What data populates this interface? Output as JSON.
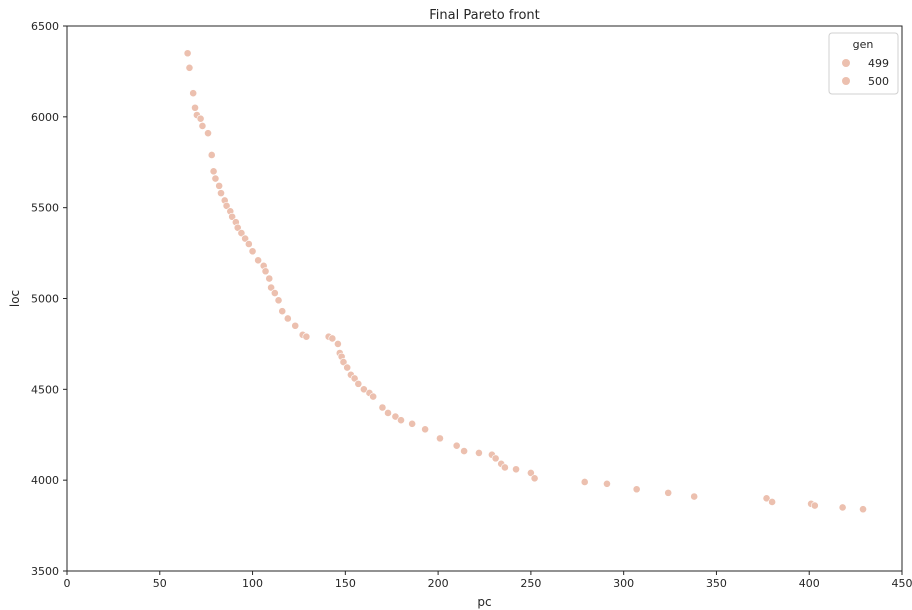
{
  "chart_data": {
    "type": "scatter",
    "title": "Final Pareto front",
    "xlabel": "pc",
    "ylabel": "loc",
    "xlim": [
      0,
      450
    ],
    "ylim": [
      3500,
      6500
    ],
    "xticks": [
      0,
      50,
      100,
      150,
      200,
      250,
      300,
      350,
      400,
      450
    ],
    "yticks": [
      3500,
      4000,
      4500,
      5000,
      5500,
      6000,
      6500
    ],
    "grid": false,
    "legend": {
      "title": "gen",
      "placement": "top-right"
    },
    "series": [
      {
        "name": "499",
        "color": "#ecc0af",
        "points": []
      },
      {
        "name": "500",
        "color": "#ecc0af",
        "points": [
          [
            65,
            6350
          ],
          [
            66,
            6270
          ],
          [
            68,
            6130
          ],
          [
            69,
            6050
          ],
          [
            70,
            6010
          ],
          [
            72,
            5990
          ],
          [
            73,
            5950
          ],
          [
            76,
            5910
          ],
          [
            78,
            5790
          ],
          [
            79,
            5700
          ],
          [
            80,
            5660
          ],
          [
            82,
            5620
          ],
          [
            83,
            5580
          ],
          [
            85,
            5540
          ],
          [
            86,
            5510
          ],
          [
            88,
            5480
          ],
          [
            89,
            5450
          ],
          [
            91,
            5420
          ],
          [
            92,
            5390
          ],
          [
            94,
            5360
          ],
          [
            96,
            5330
          ],
          [
            98,
            5300
          ],
          [
            100,
            5260
          ],
          [
            103,
            5210
          ],
          [
            106,
            5180
          ],
          [
            107,
            5150
          ],
          [
            109,
            5110
          ],
          [
            110,
            5060
          ],
          [
            112,
            5030
          ],
          [
            114,
            4990
          ],
          [
            116,
            4930
          ],
          [
            119,
            4890
          ],
          [
            123,
            4850
          ],
          [
            127,
            4800
          ],
          [
            129,
            4790
          ],
          [
            141,
            4790
          ],
          [
            143,
            4780
          ],
          [
            146,
            4750
          ],
          [
            147,
            4700
          ],
          [
            148,
            4680
          ],
          [
            149,
            4650
          ],
          [
            151,
            4620
          ],
          [
            153,
            4580
          ],
          [
            155,
            4560
          ],
          [
            157,
            4530
          ],
          [
            160,
            4500
          ],
          [
            163,
            4480
          ],
          [
            165,
            4460
          ],
          [
            170,
            4400
          ],
          [
            173,
            4370
          ],
          [
            177,
            4350
          ],
          [
            180,
            4330
          ],
          [
            186,
            4310
          ],
          [
            193,
            4280
          ],
          [
            201,
            4230
          ],
          [
            210,
            4190
          ],
          [
            214,
            4160
          ],
          [
            222,
            4150
          ],
          [
            229,
            4140
          ],
          [
            231,
            4120
          ],
          [
            234,
            4090
          ],
          [
            236,
            4070
          ],
          [
            242,
            4060
          ],
          [
            250,
            4040
          ],
          [
            252,
            4010
          ],
          [
            279,
            3990
          ],
          [
            291,
            3980
          ],
          [
            307,
            3950
          ],
          [
            324,
            3930
          ],
          [
            338,
            3910
          ],
          [
            377,
            3900
          ],
          [
            380,
            3880
          ],
          [
            401,
            3870
          ],
          [
            403,
            3860
          ],
          [
            418,
            3850
          ],
          [
            429,
            3840
          ]
        ]
      }
    ]
  }
}
